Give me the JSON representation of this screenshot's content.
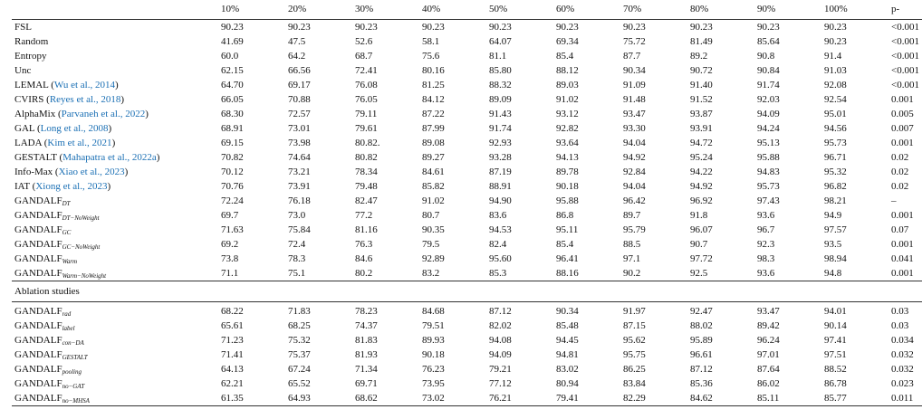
{
  "header": [
    "",
    "10%",
    "20%",
    "30%",
    "40%",
    "50%",
    "60%",
    "70%",
    "80%",
    "90%",
    "100%",
    "p-"
  ],
  "rows": [
    {
      "name": "FSL",
      "cite": "",
      "sub": "",
      "values": [
        "90.23",
        "90.23",
        "90.23",
        "90.23",
        "90.23",
        "90.23",
        "90.23",
        "90.23",
        "90.23",
        "90.23",
        "<0.001"
      ]
    },
    {
      "name": "Random",
      "cite": "",
      "sub": "",
      "values": [
        "41.69",
        "47.5",
        "52.6",
        "58.1",
        "64.07",
        "69.34",
        "75.72",
        "81.49",
        "85.64",
        "90.23",
        "<0.001"
      ]
    },
    {
      "name": "Entropy",
      "cite": "",
      "sub": "",
      "values": [
        "60.0",
        "64.2",
        "68.7",
        "75.6",
        "81.1",
        "85.4",
        "87.7",
        "89.2",
        "90.8",
        "91.4",
        "<0.001"
      ]
    },
    {
      "name": "Unc",
      "cite": "",
      "sub": "",
      "values": [
        "62.15",
        "66.56",
        "72.41",
        "80.16",
        "85.80",
        "88.12",
        "90.34",
        "90.72",
        "90.84",
        "91.03",
        "<0.001"
      ]
    },
    {
      "name": "LEMAL",
      "cite": "Wu et al., 2014",
      "sub": "",
      "values": [
        "64.70",
        "69.17",
        "76.08",
        "81.25",
        "88.32",
        "89.03",
        "91.09",
        "91.40",
        "91.74",
        "92.08",
        "<0.001"
      ]
    },
    {
      "name": "CVIRS",
      "cite": "Reyes et al., 2018",
      "sub": "",
      "values": [
        "66.05",
        "70.88",
        "76.05",
        "84.12",
        "89.09",
        "91.02",
        "91.48",
        "91.52",
        "92.03",
        "92.54",
        "0.001"
      ]
    },
    {
      "name": "AlphaMix",
      "cite": "Parvaneh et al., 2022",
      "sub": "",
      "values": [
        "68.30",
        "72.57",
        "79.11",
        "87.22",
        "91.43",
        "93.12",
        "93.47",
        "93.87",
        "94.09",
        "95.01",
        "0.005"
      ]
    },
    {
      "name": "GAL",
      "cite": "Long et al., 2008",
      "sub": "",
      "values": [
        "68.91",
        "73.01",
        "79.61",
        "87.99",
        "91.74",
        "92.82",
        "93.30",
        "93.91",
        "94.24",
        "94.56",
        "0.007"
      ]
    },
    {
      "name": "LADA",
      "cite": "Kim et al., 2021",
      "sub": "",
      "values": [
        "69.15",
        "73.98",
        "80.82.",
        "89.08",
        "92.93",
        "93.64",
        "94.04",
        "94.72",
        "95.13",
        "95.73",
        "0.001"
      ]
    },
    {
      "name": "GESTALT",
      "cite": "Mahapatra et al., 2022a",
      "sub": "",
      "values": [
        "70.82",
        "74.64",
        "80.82",
        "89.27",
        "93.28",
        "94.13",
        "94.92",
        "95.24",
        "95.88",
        "96.71",
        "0.02"
      ]
    },
    {
      "name": "Info-Max",
      "cite": "Xiao et al., 2023",
      "sub": "",
      "values": [
        "70.12",
        "73.21",
        "78.34",
        "84.61",
        "87.19",
        "89.78",
        "92.84",
        "94.22",
        "94.83",
        "95.32",
        "0.02"
      ]
    },
    {
      "name": "IAT",
      "cite": "Xiong et al., 2023",
      "sub": "",
      "values": [
        "70.76",
        "73.91",
        "79.48",
        "85.82",
        "88.91",
        "90.18",
        "94.04",
        "94.92",
        "95.73",
        "96.82",
        "0.02"
      ]
    },
    {
      "name": "GANDALF",
      "cite": "",
      "sub": "DT",
      "values": [
        "72.24",
        "76.18",
        "82.47",
        "91.02",
        "94.90",
        "95.88",
        "96.42",
        "96.92",
        "97.43",
        "98.21",
        "–"
      ]
    },
    {
      "name": "GANDALF",
      "cite": "",
      "sub": "DT−NoWeight",
      "values": [
        "69.7",
        "73.0",
        "77.2",
        "80.7",
        "83.6",
        "86.8",
        "89.7",
        "91.8",
        "93.6",
        "94.9",
        "0.001"
      ]
    },
    {
      "name": "GANDALF",
      "cite": "",
      "sub": "GC",
      "values": [
        "71.63",
        "75.84",
        "81.16",
        "90.35",
        "94.53",
        "95.11",
        "95.79",
        "96.07",
        "96.7",
        "97.57",
        "0.07"
      ]
    },
    {
      "name": "GANDALF",
      "cite": "",
      "sub": "GC−NoWeight",
      "values": [
        "69.2",
        "72.4",
        "76.3",
        "79.5",
        "82.4",
        "85.4",
        "88.5",
        "90.7",
        "92.3",
        "93.5",
        "0.001"
      ]
    },
    {
      "name": "GANDALF",
      "cite": "",
      "sub": "Warm",
      "values": [
        "73.8",
        "78.3",
        "84.6",
        "92.89",
        "95.60",
        "96.41",
        "97.1",
        "97.72",
        "98.3",
        "98.94",
        "0.041"
      ]
    },
    {
      "name": "GANDALF",
      "cite": "",
      "sub": "Warm−NoWeight",
      "values": [
        "71.1",
        "75.1",
        "80.2",
        "83.2",
        "85.3",
        "88.16",
        "90.2",
        "92.5",
        "93.6",
        "94.8",
        "0.001"
      ]
    }
  ],
  "section_title": "Ablation studies",
  "ablation_rows": [
    {
      "name": "GANDALF",
      "sub": "rad",
      "values": [
        "68.22",
        "71.83",
        "78.23",
        "84.68",
        "87.12",
        "90.34",
        "91.97",
        "92.47",
        "93.47",
        "94.01",
        "0.03"
      ]
    },
    {
      "name": "GANDALF",
      "sub": "label",
      "values": [
        "65.61",
        "68.25",
        "74.37",
        "79.51",
        "82.02",
        "85.48",
        "87.15",
        "88.02",
        "89.42",
        "90.14",
        "0.03"
      ]
    },
    {
      "name": "GANDALF",
      "sub": "con−DA",
      "values": [
        "71.23",
        "75.32",
        "81.83",
        "89.93",
        "94.08",
        "94.45",
        "95.62",
        "95.89",
        "96.24",
        "97.41",
        "0.034"
      ]
    },
    {
      "name": "GANDALF",
      "sub": "GESTALT",
      "values": [
        "71.41",
        "75.37",
        "81.93",
        "90.18",
        "94.09",
        "94.81",
        "95.75",
        "96.61",
        "97.01",
        "97.51",
        "0.032"
      ]
    },
    {
      "name": "GANDALF",
      "sub": "pooling",
      "values": [
        "64.13",
        "67.24",
        "71.34",
        "76.23",
        "79.21",
        "83.02",
        "86.25",
        "87.12",
        "87.64",
        "88.52",
        "0.032"
      ]
    },
    {
      "name": "GANDALF",
      "sub": "no−GAT",
      "values": [
        "62.21",
        "65.52",
        "69.71",
        "73.95",
        "77.12",
        "80.94",
        "83.84",
        "85.36",
        "86.02",
        "86.78",
        "0.023"
      ]
    },
    {
      "name": "GANDALF",
      "sub": "no−MHSA",
      "values": [
        "61.35",
        "64.93",
        "68.62",
        "73.02",
        "76.21",
        "79.41",
        "82.29",
        "84.62",
        "85.11",
        "85.77",
        "0.011"
      ]
    }
  ]
}
